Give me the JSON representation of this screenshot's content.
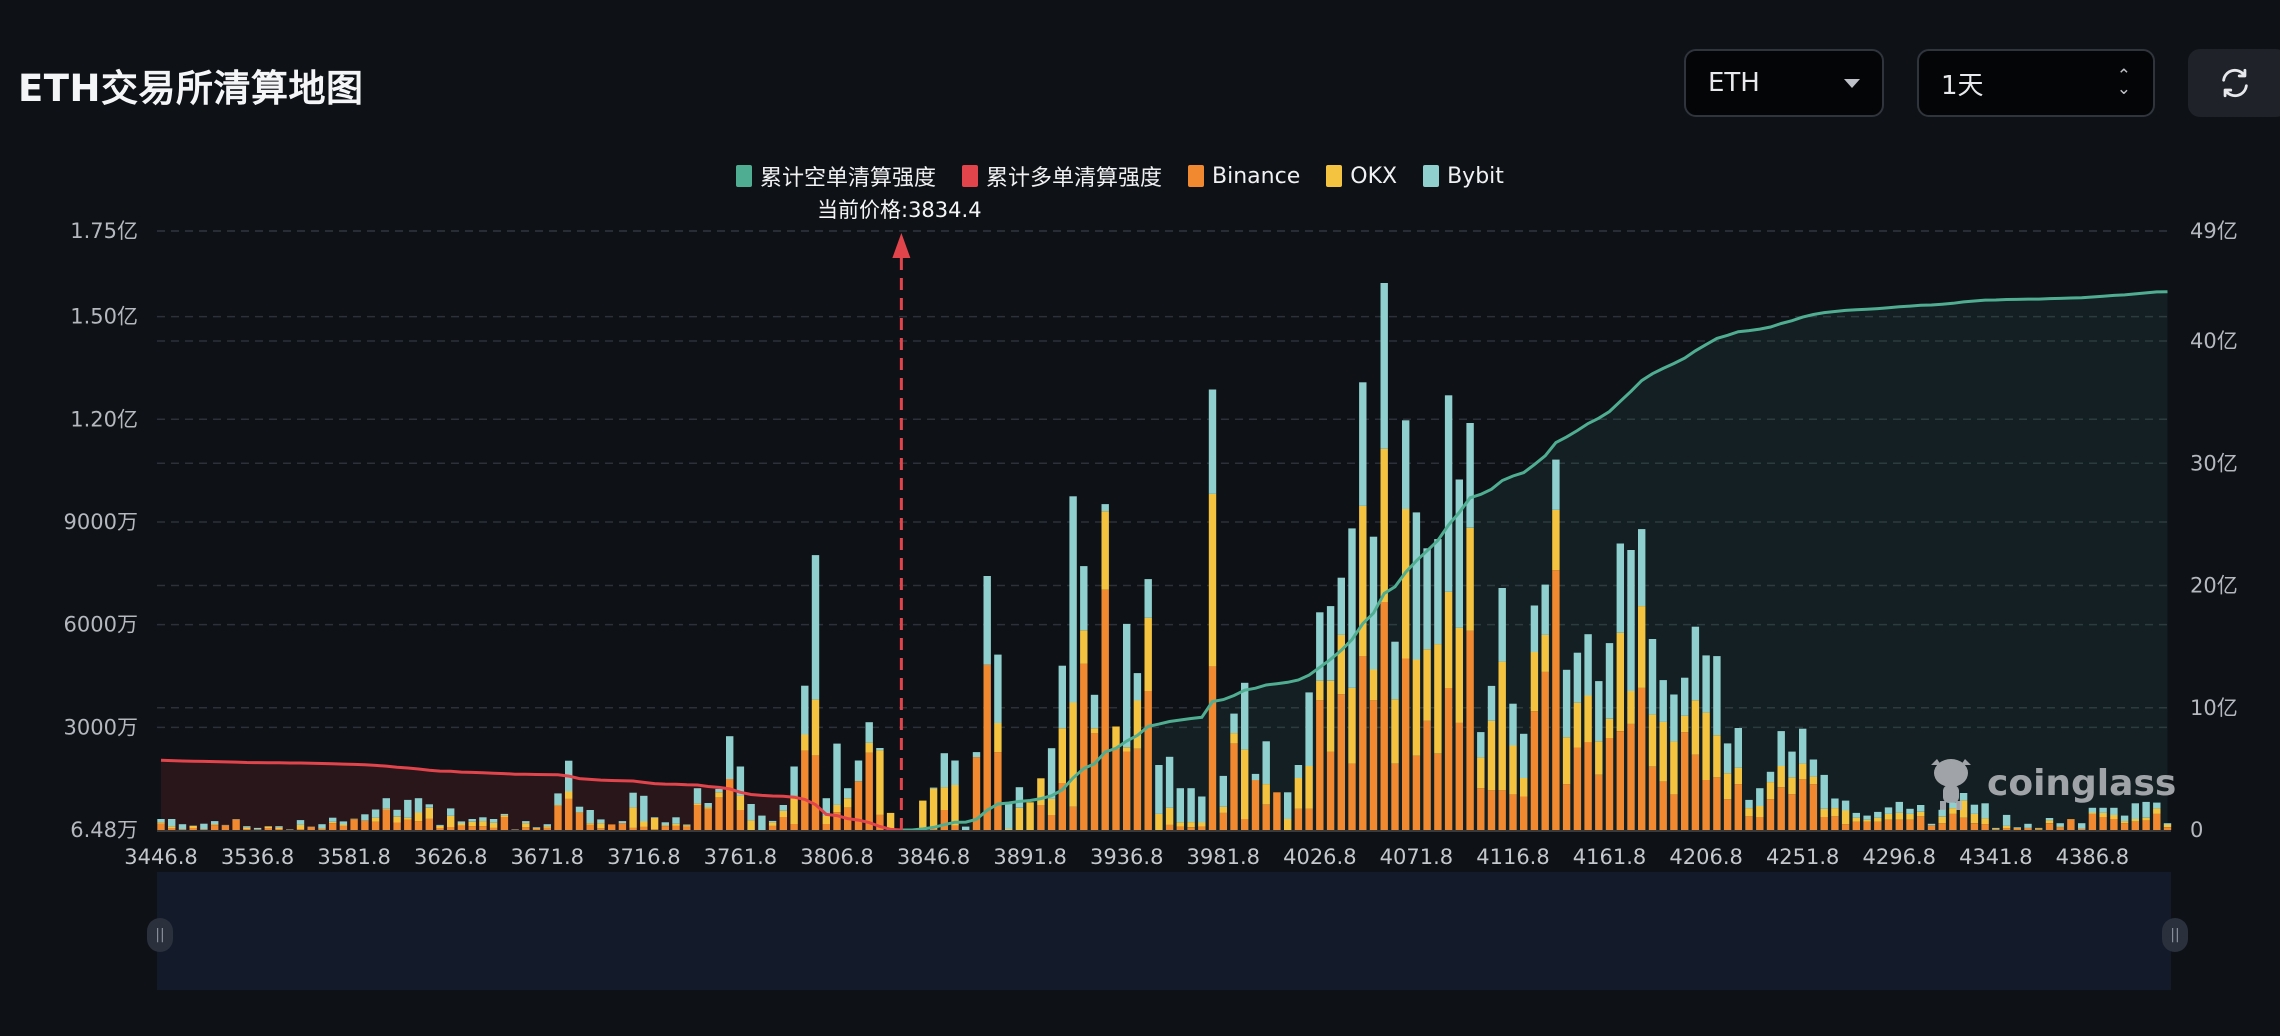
{
  "header": {
    "title": "ETH交易所清算地图",
    "coin_select": "ETH",
    "period_select": "1天",
    "refresh_icon": "refresh-icon"
  },
  "current_price_label": "当前价格:3834.4",
  "watermark": "coinglass",
  "chart_data": {
    "type": "bar",
    "title": "ETH交易所清算地图",
    "stacked": true,
    "legend_placement": "top-center",
    "legend": [
      {
        "label": "累计空单清算强度",
        "color": "#4fae92"
      },
      {
        "label": "累计多单清算强度",
        "color": "#e2444b"
      },
      {
        "label": "Binance",
        "color": "#f0892f"
      },
      {
        "label": "OKX",
        "color": "#f4c441"
      },
      {
        "label": "Bybit",
        "color": "#8fcfcd"
      }
    ],
    "current_price": 3834.4,
    "bar_unit": "万 USD (left axis)",
    "cumulative_unit": "亿 USD (right axis)",
    "cumulative_note": "cumulative long (left of price) and short (right of price) = running sums of bar totals",
    "left_axis": {
      "min": 0,
      "max": 17500,
      "ticks": [
        {
          "label": "6.48万",
          "v": 6.48
        },
        {
          "label": "3000万",
          "v": 3000
        },
        {
          "label": "6000万",
          "v": 6000
        },
        {
          "label": "9000万",
          "v": 9000
        },
        {
          "label": "1.20亿",
          "v": 12000
        },
        {
          "label": "1.50亿",
          "v": 15000
        },
        {
          "label": "1.75亿",
          "v": 17500
        }
      ]
    },
    "right_axis": {
      "min": 0,
      "max": 49,
      "ticks": [
        {
          "label": "0",
          "v": 0
        },
        {
          "label": "10亿",
          "v": 10
        },
        {
          "label": "20亿",
          "v": 20
        },
        {
          "label": "30亿",
          "v": 30
        },
        {
          "label": "40亿",
          "v": 40
        },
        {
          "label": "49亿",
          "v": 49
        }
      ]
    },
    "x_tick_labels": [
      "3446.8",
      "3536.8",
      "3581.8",
      "3626.8",
      "3671.8",
      "3716.8",
      "3761.8",
      "3806.8",
      "3846.8",
      "3891.8",
      "3936.8",
      "3981.8",
      "4026.8",
      "4071.8",
      "4116.8",
      "4161.8",
      "4206.8",
      "4251.8",
      "4296.8",
      "4341.8",
      "4386.8"
    ],
    "stack_order": [
      "Binance",
      "OKX",
      "Bybit"
    ],
    "x": [
      3446.8,
      3496.8,
      3501.8,
      3506.8,
      3511.8,
      3516.8,
      3521.8,
      3526.8,
      3531.8,
      3536.8,
      3541.8,
      3546.8,
      3551.8,
      3556.8,
      3561.8,
      3566.8,
      3571.8,
      3576.8,
      3581.8,
      3586.8,
      3591.8,
      3596.8,
      3601.8,
      3606.8,
      3611.8,
      3616.8,
      3621.8,
      3626.8,
      3631.8,
      3636.8,
      3641.8,
      3646.8,
      3651.8,
      3656.8,
      3661.8,
      3666.8,
      3671.8,
      3676.8,
      3681.8,
      3686.8,
      3691.8,
      3696.8,
      3701.8,
      3706.8,
      3711.8,
      3716.8,
      3721.8,
      3726.8,
      3731.8,
      3736.8,
      3741.8,
      3746.8,
      3751.8,
      3756.8,
      3761.8,
      3766.8,
      3771.8,
      3776.8,
      3781.8,
      3786.8,
      3791.8,
      3796.8,
      3801.8,
      3806.8,
      3811.8,
      3816.8,
      3821.8,
      3826.8,
      3831.8,
      3834.4,
      3836.8,
      3841.8,
      3846.8,
      3851.8,
      3856.8,
      3861.8,
      3866.8,
      3871.8,
      3876.8,
      3881.8,
      3886.8,
      3891.8,
      3896.8,
      3901.8,
      3906.8,
      3911.8,
      3916.8,
      3921.8,
      3926.8,
      3931.8,
      3936.8,
      3941.8,
      3946.8,
      3951.8,
      3956.8,
      3961.8,
      3966.8,
      3971.8,
      3976.8,
      3981.8,
      3986.8,
      3991.8,
      3996.8,
      4001.8,
      4006.8,
      4011.8,
      4016.8,
      4021.8,
      4026.8,
      4031.8,
      4036.8,
      4041.8,
      4046.8,
      4051.8,
      4056.8,
      4061.8,
      4066.8,
      4071.8,
      4076.8,
      4081.8,
      4086.8,
      4091.8,
      4096.8,
      4101.8,
      4106.8,
      4111.8,
      4116.8,
      4121.8,
      4126.8,
      4131.8,
      4136.8,
      4141.8,
      4146.8,
      4151.8,
      4156.8,
      4161.8,
      4166.8,
      4171.8,
      4176.8,
      4181.8,
      4186.8,
      4191.8,
      4196.8,
      4201.8,
      4206.8,
      4211.8,
      4216.8,
      4221.8,
      4226.8,
      4231.8,
      4236.8,
      4241.8,
      4246.8,
      4251.8,
      4256.8,
      4261.8,
      4266.8,
      4271.8,
      4276.8,
      4281.8,
      4286.8,
      4291.8,
      4296.8,
      4301.8,
      4306.8,
      4311.8,
      4316.8,
      4321.8,
      4326.8,
      4331.8,
      4336.8,
      4341.8,
      4346.8,
      4351.8,
      4356.8,
      4361.8,
      4366.8,
      4371.8,
      4376.8,
      4381.8,
      4386.8,
      4391.8,
      4396.8,
      4401.8,
      4406.8,
      4411.8,
      4416.8,
      4421.8
    ],
    "stacks": [
      [
        190,
        30,
        100
      ],
      [
        60,
        40,
        220
      ],
      [
        20,
        0,
        150
      ],
      [
        60,
        60,
        10
      ],
      [
        20,
        0,
        165
      ],
      [
        140,
        30,
        90
      ],
      [
        140,
        0,
        10
      ],
      [
        310,
        0,
        10
      ],
      [
        30,
        40,
        40
      ],
      [
        10,
        10,
        40
      ],
      [
        60,
        40,
        10
      ],
      [
        30,
        40,
        40
      ],
      [
        5,
        5,
        10
      ],
      [
        30,
        120,
        140
      ],
      [
        90,
        0,
        10
      ],
      [
        30,
        20,
        120
      ],
      [
        200,
        40,
        120
      ],
      [
        120,
        40,
        90
      ],
      [
        310,
        10,
        10
      ],
      [
        270,
        10,
        180
      ],
      [
        240,
        120,
        240
      ],
      [
        600,
        20,
        310
      ],
      [
        220,
        170,
        200
      ],
      [
        300,
        60,
        520
      ],
      [
        260,
        250,
        420
      ],
      [
        330,
        320,
        100
      ],
      [
        60,
        60,
        30
      ],
      [
        90,
        320,
        220
      ],
      [
        130,
        60,
        60
      ],
      [
        110,
        130,
        80
      ],
      [
        110,
        150,
        110
      ],
      [
        60,
        150,
        110
      ],
      [
        380,
        50,
        40
      ],
      [
        10,
        0,
        10
      ],
      [
        80,
        120,
        60
      ],
      [
        30,
        30,
        20
      ],
      [
        60,
        50,
        60
      ],
      [
        710,
        20,
        340
      ],
      [
        910,
        215,
        900
      ],
      [
        500,
        20,
        160
      ],
      [
        150,
        50,
        385
      ],
      [
        50,
        150,
        110
      ],
      [
        165,
        0,
        0
      ],
      [
        200,
        0,
        60
      ],
      [
        60,
        600,
        430
      ],
      [
        90,
        160,
        750
      ],
      [
        20,
        330,
        20
      ],
      [
        110,
        30,
        85
      ],
      [
        120,
        60,
        190
      ],
      [
        100,
        40,
        20
      ],
      [
        730,
        40,
        450
      ],
      [
        620,
        50,
        120
      ],
      [
        950,
        150,
        100
      ],
      [
        1490,
        0,
        1250
      ],
      [
        585,
        420,
        850
      ],
      [
        0,
        280,
        480
      ],
      [
        0,
        0,
        420
      ],
      [
        120,
        100,
        45
      ],
      [
        380,
        180,
        170
      ],
      [
        175,
        830,
        850
      ],
      [
        2320,
        470,
        1425
      ],
      [
        2180,
        1630,
        4220
      ],
      [
        175,
        245,
        510
      ],
      [
        520,
        215,
        1790
      ],
      [
        660,
        265,
        295
      ],
      [
        1425,
        0,
        605
      ],
      [
        2255,
        290,
        605
      ],
      [
        440,
        1885,
        70
      ],
      [
        0,
        500,
        0
      ],
      [
        0,
        0,
        0
      ],
      [
        0,
        0,
        0
      ],
      [
        0,
        860,
        0
      ],
      [
        30,
        1180,
        30
      ],
      [
        585,
        665,
        995
      ],
      [
        125,
        1190,
        715
      ],
      [
        0,
        0,
        100
      ],
      [
        2130,
        0,
        145
      ],
      [
        4830,
        0,
        2590
      ],
      [
        2275,
        850,
        2000
      ],
      [
        0,
        30,
        780
      ],
      [
        0,
        650,
        600
      ],
      [
        0,
        810,
        0
      ],
      [
        730,
        780,
        0
      ],
      [
        440,
        470,
        1480
      ],
      [
        1375,
        1600,
        1825
      ],
      [
        680,
        3045,
        6025
      ],
      [
        4860,
        975,
        1875
      ],
      [
        2830,
        145,
        975
      ],
      [
        7020,
        2290,
        210
      ],
      [
        2370,
        655,
        0
      ],
      [
        2295,
        125,
        3600
      ],
      [
        2370,
        1415,
        800
      ],
      [
        4060,
        2140,
        1130
      ],
      [
        0,
        470,
        1430
      ],
      [
        150,
        500,
        1490
      ],
      [
        100,
        120,
        1000
      ],
      [
        80,
        150,
        990
      ],
      [
        100,
        120,
        760
      ],
      [
        4780,
        5040,
        3050
      ],
      [
        500,
        180,
        900
      ],
      [
        2530,
        300,
        570
      ],
      [
        320,
        2030,
        1950
      ],
      [
        1460,
        0,
        180
      ],
      [
        740,
        600,
        1250
      ],
      [
        1100,
        0,
        0
      ],
      [
        0,
        320,
        780
      ],
      [
        620,
        900,
        380
      ],
      [
        620,
        1250,
        2150
      ],
      [
        3790,
        570,
        2000
      ],
      [
        2290,
        2070,
        2180
      ],
      [
        3970,
        1730,
        1670
      ],
      [
        1940,
        2210,
        4660
      ],
      [
        5080,
        4390,
        3610
      ],
      [
        3790,
        900,
        3880
      ],
      [
        6660,
        4480,
        4840
      ],
      [
        1940,
        1880,
        1680
      ],
      [
        5010,
        4370,
        2590
      ],
      [
        2170,
        2810,
        4300
      ],
      [
        3190,
        2090,
        2950
      ],
      [
        2230,
        3200,
        3070
      ],
      [
        4150,
        2810,
        5740
      ],
      [
        3130,
        2780,
        4330
      ],
      [
        5820,
        3010,
        3060
      ],
      [
        1220,
        900,
        740
      ],
      [
        1160,
        2030,
        1020
      ],
      [
        1160,
        3760,
        2150
      ],
      [
        1040,
        1430,
        1220
      ],
      [
        980,
        540,
        1290
      ],
      [
        3470,
        1730,
        1360
      ],
      [
        4620,
        1080,
        1470
      ],
      [
        7590,
        1760,
        1470
      ],
      [
        1340,
        1370,
        1970
      ],
      [
        2410,
        1310,
        1460
      ],
      [
        2570,
        1360,
        1790
      ],
      [
        1610,
        980,
        1760
      ],
      [
        2690,
        560,
        2210
      ],
      [
        2890,
        2870,
        2610
      ],
      [
        3100,
        960,
        4120
      ],
      [
        4150,
        2390,
        2250
      ],
      [
        1850,
        1520,
        2210
      ],
      [
        1420,
        1740,
        1220
      ],
      [
        1040,
        1550,
        1370
      ],
      [
        2860,
        480,
        1110
      ],
      [
        2200,
        1590,
        2150
      ],
      [
        1460,
        1970,
        1670
      ],
      [
        1540,
        1230,
        2310
      ],
      [
        900,
        760,
        870
      ],
      [
        1340,
        480,
        1160
      ],
      [
        400,
        240,
        240
      ],
      [
        380,
        320,
        520
      ],
      [
        900,
        500,
        300
      ],
      [
        1250,
        620,
        1020
      ],
      [
        1050,
        490,
        750
      ],
      [
        1480,
        460,
        1020
      ],
      [
        1340,
        220,
        500
      ],
      [
        380,
        240,
        990
      ],
      [
        400,
        240,
        280
      ],
      [
        170,
        400,
        290
      ],
      [
        240,
        120,
        140
      ],
      [
        240,
        60,
        120
      ],
      [
        240,
        120,
        170
      ],
      [
        300,
        170,
        190
      ],
      [
        300,
        200,
        320
      ],
      [
        300,
        170,
        150
      ],
      [
        400,
        130,
        200
      ],
      [
        140,
        0,
        40
      ],
      [
        200,
        190,
        200
      ],
      [
        470,
        170,
        160
      ],
      [
        360,
        500,
        220
      ],
      [
        200,
        270,
        270
      ],
      [
        170,
        170,
        440
      ],
      [
        20,
        20,
        20
      ],
      [
        50,
        70,
        320
      ],
      [
        40,
        20,
        20
      ],
      [
        60,
        0,
        120
      ],
      [
        20,
        30,
        10
      ],
      [
        200,
        80,
        70
      ],
      [
        80,
        20,
        100
      ],
      [
        310,
        10,
        0
      ],
      [
        40,
        0,
        160
      ],
      [
        470,
        40,
        140
      ],
      [
        380,
        120,
        150
      ],
      [
        320,
        120,
        210
      ],
      [
        200,
        60,
        160
      ],
      [
        240,
        80,
        460
      ],
      [
        280,
        80,
        460
      ],
      [
        470,
        160,
        170
      ],
      [
        80,
        80,
        40
      ]
    ]
  }
}
